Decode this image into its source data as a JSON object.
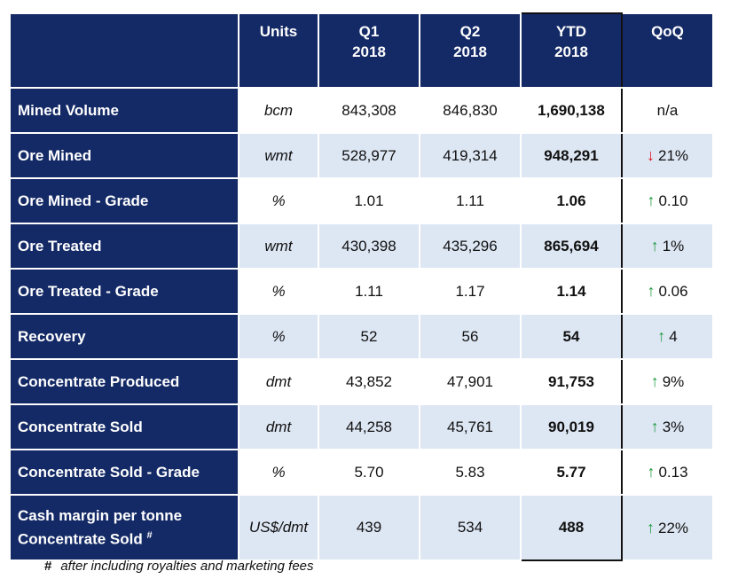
{
  "header": {
    "units": "Units",
    "q1": [
      "Q1",
      "2018"
    ],
    "q2": [
      "Q2",
      "2018"
    ],
    "ytd": [
      "YTD",
      "2018"
    ],
    "qoq": "QoQ"
  },
  "rows": [
    {
      "label": "Mined Volume",
      "units": "bcm",
      "q1": "843,308",
      "q2": "846,830",
      "ytd": "1,690,138",
      "qoq": {
        "dir": "none",
        "text": "n/a"
      }
    },
    {
      "label": "Ore Mined",
      "units": "wmt",
      "q1": "528,977",
      "q2": "419,314",
      "ytd": "948,291",
      "qoq": {
        "dir": "down",
        "text": "21%"
      }
    },
    {
      "label": "Ore Mined - Grade",
      "units": "%",
      "q1": "1.01",
      "q2": "1.11",
      "ytd": "1.06",
      "qoq": {
        "dir": "up",
        "text": "0.10"
      }
    },
    {
      "label": "Ore Treated",
      "units": "wmt",
      "q1": "430,398",
      "q2": "435,296",
      "ytd": "865,694",
      "qoq": {
        "dir": "up",
        "text": "1%"
      }
    },
    {
      "label": "Ore Treated - Grade",
      "units": "%",
      "q1": "1.11",
      "q2": "1.17",
      "ytd": "1.14",
      "qoq": {
        "dir": "up",
        "text": "0.06"
      }
    },
    {
      "label": "Recovery",
      "units": "%",
      "q1": "52",
      "q2": "56",
      "ytd": "54",
      "qoq": {
        "dir": "up",
        "text": "4"
      }
    },
    {
      "label": "Concentrate Produced",
      "units": "dmt",
      "q1": "43,852",
      "q2": "47,901",
      "ytd": "91,753",
      "qoq": {
        "dir": "up",
        "text": "9%"
      }
    },
    {
      "label": "Concentrate Sold",
      "units": "dmt",
      "q1": "44,258",
      "q2": "45,761",
      "ytd": "90,019",
      "qoq": {
        "dir": "up",
        "text": "3%"
      }
    },
    {
      "label": "Concentrate Sold - Grade",
      "units": "%",
      "q1": "5.70",
      "q2": "5.83",
      "ytd": "5.77",
      "qoq": {
        "dir": "up",
        "text": "0.13"
      }
    },
    {
      "label": "Cash margin per tonne",
      "label2": "Concentrate Sold",
      "label_sup": "#",
      "units": "US$/dmt",
      "q1": "439",
      "q2": "534",
      "ytd": "488",
      "qoq": {
        "dir": "up",
        "text": "22%"
      }
    }
  ],
  "footnote": {
    "mark": "#",
    "text": "after including royalties and marketing fees"
  },
  "colors": {
    "header_bg": "#142a66",
    "row_alt_bg": "#dde6f3",
    "arrow_up": "#1d9a3e",
    "arrow_down": "#e0101a"
  },
  "icons": {
    "up": "arrow-up-icon",
    "down": "arrow-down-icon"
  }
}
